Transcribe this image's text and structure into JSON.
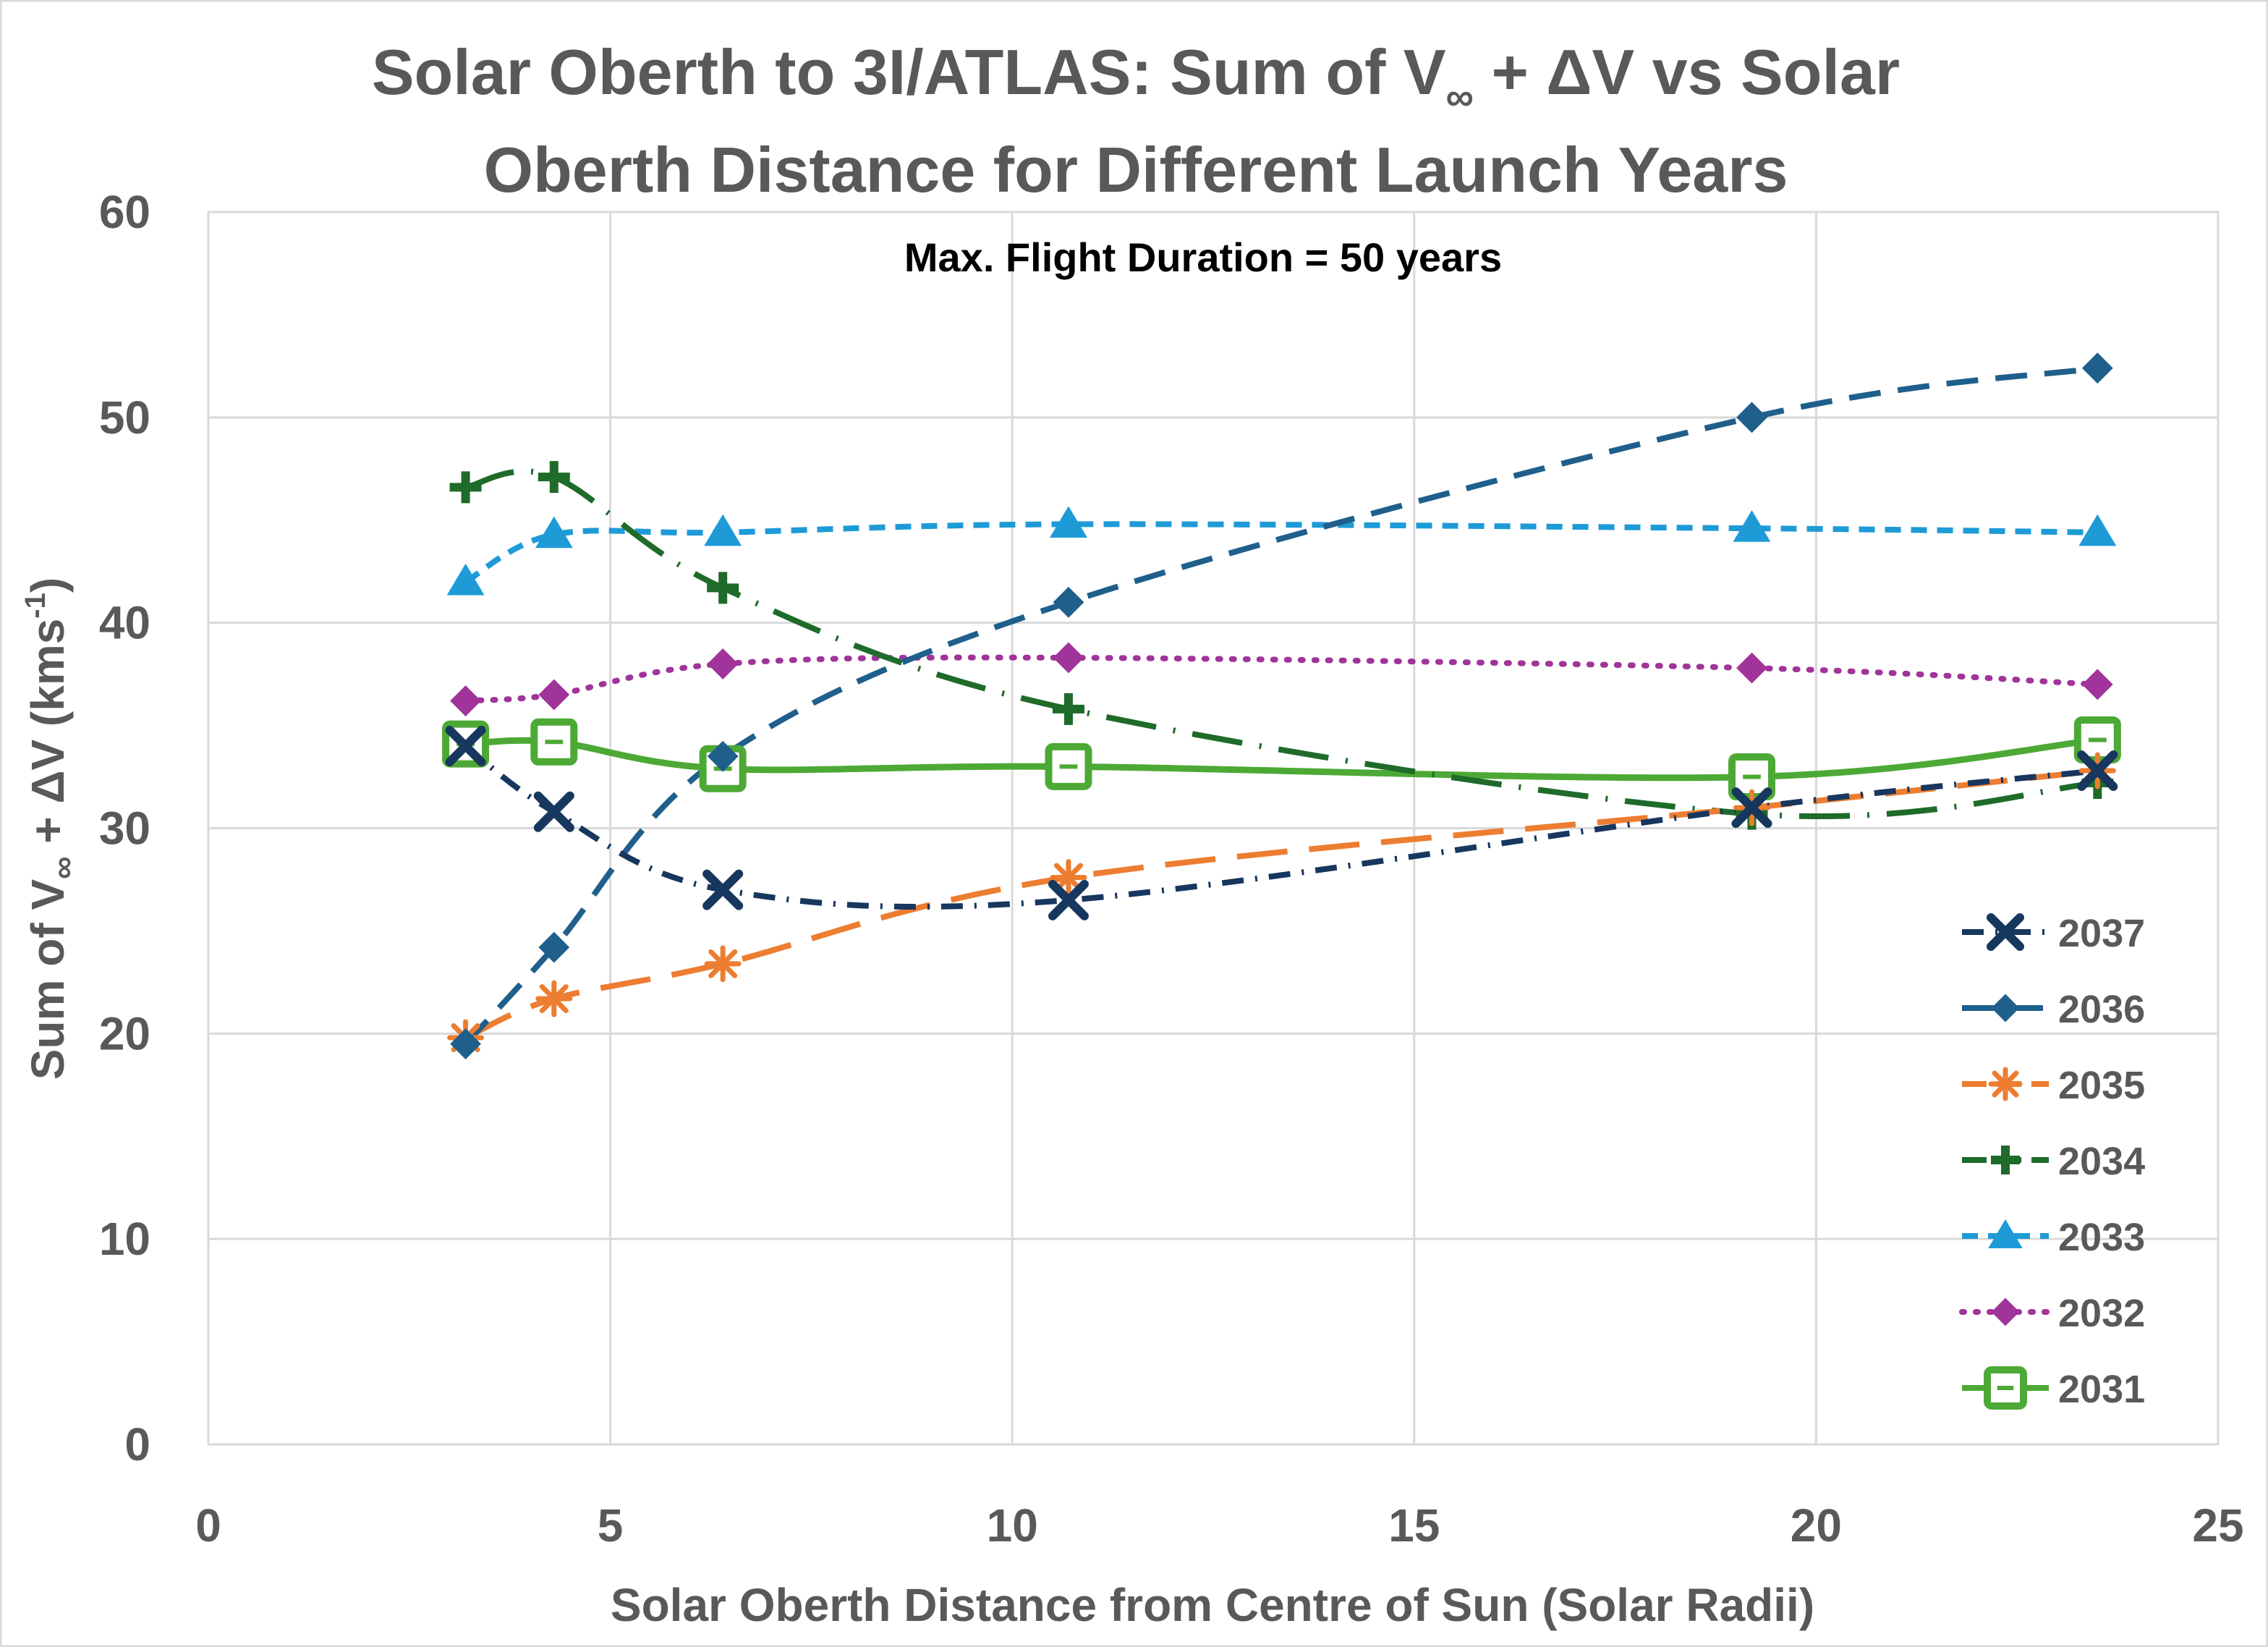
{
  "chart_data": {
    "type": "line",
    "title_line1": "Solar Oberth to 3I/ATLAS: Sum of V",
    "title_line1_sub": "∞",
    "title_line1_rest": " + ΔV vs Solar",
    "title_line2": "Oberth Distance for Different Launch Years",
    "annotation": "Max. Flight Duration = 50 years",
    "xlabel": "Solar Oberth Distance from Centre of Sun (Solar Radii)",
    "ylabel_main": "Sum of V",
    "ylabel_sub": "∞",
    "ylabel_mid": " + ΔV (kms",
    "ylabel_sup": "-1",
    "ylabel_end": ")",
    "xlim": [
      0,
      25
    ],
    "ylim": [
      0,
      60
    ],
    "xticks": [
      0,
      5,
      10,
      15,
      20,
      25
    ],
    "yticks": [
      0,
      10,
      20,
      30,
      40,
      50,
      60
    ],
    "grid": true,
    "legend_position": "right",
    "series": [
      {
        "name": "2037",
        "color": "#17375E",
        "dash": "dashdot",
        "marker": "x",
        "x": [
          3.2,
          4.3,
          6.4,
          10.7,
          19.2,
          23.5
        ],
        "y": [
          34.0,
          30.8,
          27.0,
          26.5,
          31.0,
          32.8
        ]
      },
      {
        "name": "2036",
        "color": "#1F5F8B",
        "dash": "dash",
        "marker": "diamond",
        "x": [
          3.2,
          4.3,
          6.4,
          10.7,
          19.2,
          23.5
        ],
        "y": [
          19.5,
          24.2,
          33.5,
          41.0,
          50.0,
          52.4
        ]
      },
      {
        "name": "2035",
        "color": "#ED7D31",
        "dash": "longdash",
        "marker": "asterisk",
        "x": [
          3.2,
          4.3,
          6.4,
          10.7,
          19.2,
          23.5
        ],
        "y": [
          19.8,
          21.7,
          23.4,
          27.6,
          31.0,
          32.8
        ]
      },
      {
        "name": "2034",
        "color": "#1E6B2A",
        "dash": "longdashdot",
        "marker": "plus",
        "x": [
          3.2,
          4.3,
          6.4,
          10.7,
          19.2,
          23.5
        ],
        "y": [
          46.6,
          47.1,
          41.7,
          35.8,
          30.7,
          32.2
        ]
      },
      {
        "name": "2033",
        "color": "#1E9BD7",
        "dash": "shortdash",
        "marker": "triangle",
        "x": [
          3.2,
          4.3,
          6.4,
          10.7,
          19.2,
          23.5
        ],
        "y": [
          42.0,
          44.3,
          44.4,
          44.8,
          44.6,
          44.4
        ]
      },
      {
        "name": "2032",
        "color": "#A0349A",
        "dash": "dot",
        "marker": "diamond",
        "x": [
          3.2,
          4.3,
          6.4,
          10.7,
          19.2,
          23.5
        ],
        "y": [
          36.2,
          36.5,
          38.0,
          38.3,
          37.8,
          37.0
        ]
      },
      {
        "name": "2031",
        "color": "#4DA935",
        "dash": "solid",
        "marker": "square",
        "x": [
          3.2,
          4.3,
          6.4,
          10.7,
          19.2,
          23.5
        ],
        "y": [
          34.1,
          34.2,
          32.9,
          33.0,
          32.5,
          34.3
        ]
      }
    ]
  }
}
